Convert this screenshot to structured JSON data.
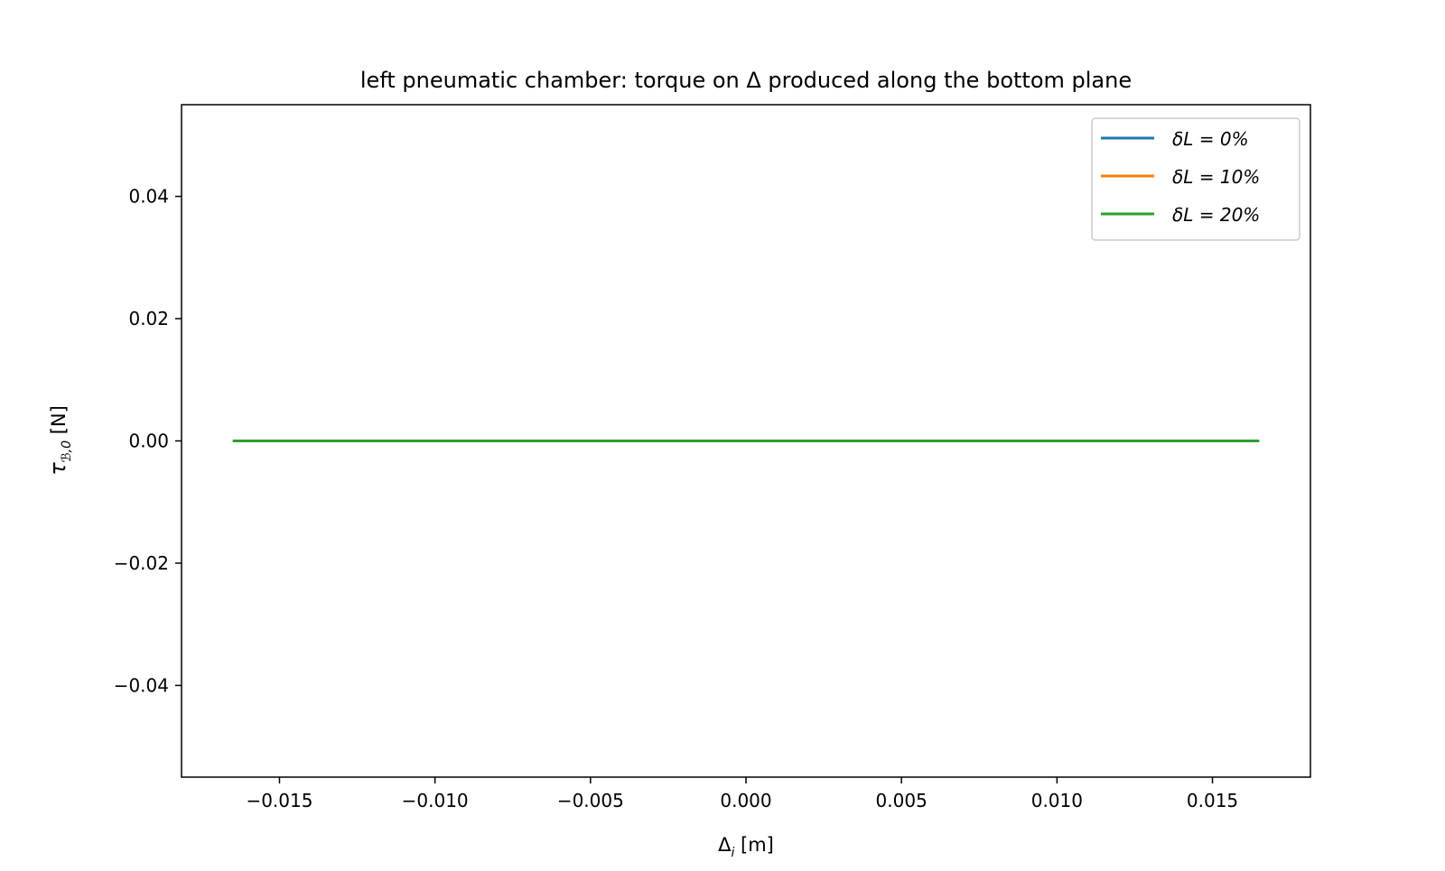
{
  "chart_data": {
    "type": "line",
    "title": "left pneumatic chamber: torque on Δ produced along the bottom plane",
    "xlabel": "Δ",
    "xlabel_sub": "i",
    "xlabel_unit": " [m]",
    "ylabel": "τ",
    "ylabel_sub": "ℬ,0",
    "ylabel_unit": " [N]",
    "xlim": [
      -0.01815,
      0.01815
    ],
    "ylim": [
      -0.055,
      0.055
    ],
    "x_ticks": [
      -0.015,
      -0.01,
      -0.005,
      0.0,
      0.005,
      0.01,
      0.015
    ],
    "x_tick_labels": [
      "−0.015",
      "−0.010",
      "−0.005",
      "0.000",
      "0.005",
      "0.010",
      "0.015"
    ],
    "y_ticks": [
      -0.04,
      -0.02,
      0.0,
      0.02,
      0.04
    ],
    "y_tick_labels": [
      "−0.04",
      "−0.02",
      "0.00",
      "0.02",
      "0.04"
    ],
    "grid": false,
    "legend_position": "top-right",
    "series": [
      {
        "name": "δL = 0%",
        "color": "#1f77b4",
        "x": [
          -0.0165,
          0.0165
        ],
        "y": [
          0.0,
          0.0
        ]
      },
      {
        "name": "δL = 10%",
        "color": "#ff7f0e",
        "x": [
          -0.0165,
          0.0165
        ],
        "y": [
          0.0,
          0.0
        ]
      },
      {
        "name": "δL = 20%",
        "color": "#2ca02c",
        "x": [
          -0.0165,
          0.0165
        ],
        "y": [
          0.0,
          0.0
        ]
      }
    ]
  }
}
